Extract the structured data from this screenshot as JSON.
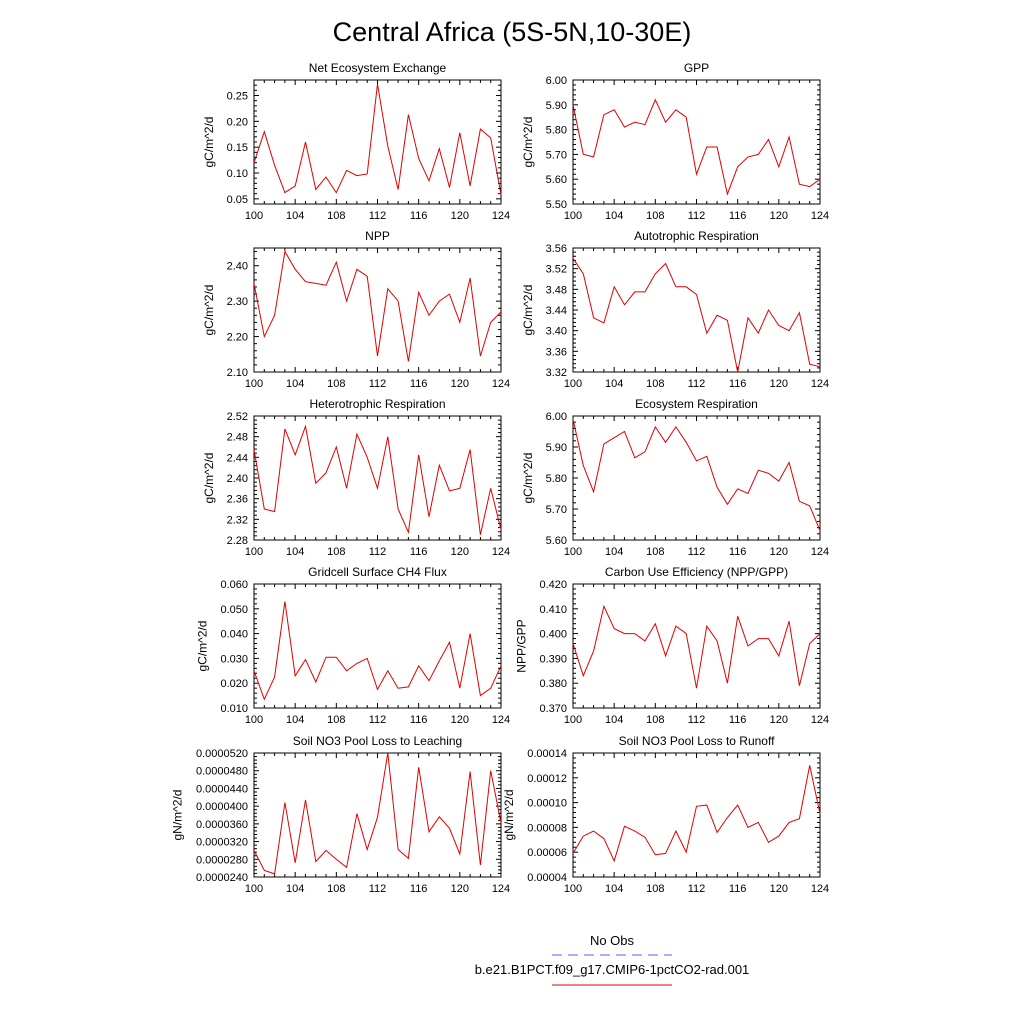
{
  "figure_title": "Central Africa (5S-5N,10-30E)",
  "legend": {
    "obs_label": "No Obs",
    "obs_color": "#5a5aff",
    "run_label": "b.e21.B1PCT.f09_g17.CMIP6-1pctCO2-rad.001",
    "run_color": "#e00000"
  },
  "chart_data": [
    {
      "type": "line",
      "title": "Net Ecosystem Exchange",
      "ylabel": "gC/m^2/d",
      "xlabel": "",
      "xlim": [
        100,
        124
      ],
      "ylim": [
        0.04,
        0.28
      ],
      "xticks": [
        "100",
        "104",
        "108",
        "112",
        "116",
        "120",
        "124"
      ],
      "yticks": [
        "0.05",
        "0.10",
        "0.15",
        "0.20",
        "0.25"
      ],
      "x": [
        100,
        101,
        102,
        103,
        104,
        105,
        106,
        107,
        108,
        109,
        110,
        111,
        112,
        113,
        114,
        115,
        116,
        117,
        118,
        119,
        120,
        121,
        122,
        123,
        124
      ],
      "values": [
        0.12,
        0.18,
        0.115,
        0.062,
        0.075,
        0.16,
        0.068,
        0.092,
        0.062,
        0.105,
        0.095,
        0.098,
        0.272,
        0.152,
        0.068,
        0.213,
        0.128,
        0.085,
        0.147,
        0.072,
        0.178,
        0.075,
        0.185,
        0.168,
        0.058
      ]
    },
    {
      "type": "line",
      "title": "GPP",
      "ylabel": "gC/m^2/d",
      "xlabel": "",
      "xlim": [
        100,
        124
      ],
      "ylim": [
        5.5,
        6.0
      ],
      "xticks": [
        "100",
        "104",
        "108",
        "112",
        "116",
        "120",
        "124"
      ],
      "yticks": [
        "5.50",
        "5.60",
        "5.70",
        "5.80",
        "5.90",
        "6.00"
      ],
      "x": [
        100,
        101,
        102,
        103,
        104,
        105,
        106,
        107,
        108,
        109,
        110,
        111,
        112,
        113,
        114,
        115,
        116,
        117,
        118,
        119,
        120,
        121,
        122,
        123,
        124
      ],
      "values": [
        5.9,
        5.7,
        5.69,
        5.86,
        5.88,
        5.81,
        5.83,
        5.82,
        5.92,
        5.83,
        5.88,
        5.85,
        5.62,
        5.73,
        5.73,
        5.54,
        5.65,
        5.69,
        5.7,
        5.76,
        5.65,
        5.77,
        5.58,
        5.57,
        5.6
      ]
    },
    {
      "type": "line",
      "title": "NPP",
      "ylabel": "gC/m^2/d",
      "xlabel": "",
      "xlim": [
        100,
        124
      ],
      "ylim": [
        2.1,
        2.45
      ],
      "xticks": [
        "100",
        "104",
        "108",
        "112",
        "116",
        "120",
        "124"
      ],
      "yticks": [
        "2.10",
        "2.20",
        "2.30",
        "2.40"
      ],
      "x": [
        100,
        101,
        102,
        103,
        104,
        105,
        106,
        107,
        108,
        109,
        110,
        111,
        112,
        113,
        114,
        115,
        116,
        117,
        118,
        119,
        120,
        121,
        122,
        123,
        124
      ],
      "values": [
        2.35,
        2.2,
        2.26,
        2.44,
        2.39,
        2.355,
        2.35,
        2.345,
        2.41,
        2.3,
        2.39,
        2.37,
        2.145,
        2.335,
        2.3,
        2.13,
        2.325,
        2.26,
        2.3,
        2.32,
        2.24,
        2.365,
        2.145,
        2.24,
        2.27
      ]
    },
    {
      "type": "line",
      "title": "Autotrophic Respiration",
      "ylabel": "gC/m^2/d",
      "xlabel": "",
      "xlim": [
        100,
        124
      ],
      "ylim": [
        3.32,
        3.56
      ],
      "xticks": [
        "100",
        "104",
        "108",
        "112",
        "116",
        "120",
        "124"
      ],
      "yticks": [
        "3.32",
        "3.36",
        "3.40",
        "3.44",
        "3.48",
        "3.52",
        "3.56"
      ],
      "x": [
        100,
        101,
        102,
        103,
        104,
        105,
        106,
        107,
        108,
        109,
        110,
        111,
        112,
        113,
        114,
        115,
        116,
        117,
        118,
        119,
        120,
        121,
        122,
        123,
        124
      ],
      "values": [
        3.54,
        3.51,
        3.425,
        3.415,
        3.485,
        3.45,
        3.475,
        3.475,
        3.51,
        3.53,
        3.485,
        3.485,
        3.47,
        3.395,
        3.43,
        3.42,
        3.32,
        3.425,
        3.395,
        3.44,
        3.41,
        3.4,
        3.435,
        3.335,
        3.33
      ]
    },
    {
      "type": "line",
      "title": "Heterotrophic Respiration",
      "ylabel": "gC/m^2/d",
      "xlabel": "",
      "xlim": [
        100,
        124
      ],
      "ylim": [
        2.28,
        2.52
      ],
      "xticks": [
        "100",
        "104",
        "108",
        "112",
        "116",
        "120",
        "124"
      ],
      "yticks": [
        "2.28",
        "2.32",
        "2.36",
        "2.40",
        "2.44",
        "2.48",
        "2.52"
      ],
      "x": [
        100,
        101,
        102,
        103,
        104,
        105,
        106,
        107,
        108,
        109,
        110,
        111,
        112,
        113,
        114,
        115,
        116,
        117,
        118,
        119,
        120,
        121,
        122,
        123,
        124
      ],
      "values": [
        2.455,
        2.34,
        2.335,
        2.495,
        2.445,
        2.5,
        2.39,
        2.41,
        2.46,
        2.38,
        2.485,
        2.44,
        2.38,
        2.48,
        2.34,
        2.295,
        2.445,
        2.325,
        2.425,
        2.375,
        2.38,
        2.455,
        2.29,
        2.38,
        2.3
      ]
    },
    {
      "type": "line",
      "title": "Ecosystem Respiration",
      "ylabel": "gC/m^2/d",
      "xlabel": "",
      "xlim": [
        100,
        124
      ],
      "ylim": [
        5.6,
        6.0
      ],
      "xticks": [
        "100",
        "104",
        "108",
        "112",
        "116",
        "120",
        "124"
      ],
      "yticks": [
        "5.60",
        "5.70",
        "5.80",
        "5.90",
        "6.00"
      ],
      "x": [
        100,
        101,
        102,
        103,
        104,
        105,
        106,
        107,
        108,
        109,
        110,
        111,
        112,
        113,
        114,
        115,
        116,
        117,
        118,
        119,
        120,
        121,
        122,
        123,
        124
      ],
      "values": [
        5.99,
        5.84,
        5.755,
        5.91,
        5.93,
        5.95,
        5.865,
        5.885,
        5.965,
        5.915,
        5.965,
        5.915,
        5.855,
        5.87,
        5.77,
        5.715,
        5.765,
        5.75,
        5.825,
        5.815,
        5.79,
        5.85,
        5.725,
        5.71,
        5.63
      ]
    },
    {
      "type": "line",
      "title": "Gridcell Surface CH4 Flux",
      "ylabel": "gC/m^2/d",
      "xlabel": "",
      "xlim": [
        100,
        124
      ],
      "ylim": [
        0.01,
        0.06
      ],
      "xticks": [
        "100",
        "104",
        "108",
        "112",
        "116",
        "120",
        "124"
      ],
      "yticks": [
        "0.010",
        "0.020",
        "0.030",
        "0.040",
        "0.050",
        "0.060"
      ],
      "x": [
        100,
        101,
        102,
        103,
        104,
        105,
        106,
        107,
        108,
        109,
        110,
        111,
        112,
        113,
        114,
        115,
        116,
        117,
        118,
        119,
        120,
        121,
        122,
        123,
        124
      ],
      "values": [
        0.025,
        0.0135,
        0.0225,
        0.053,
        0.023,
        0.0295,
        0.0205,
        0.0305,
        0.0305,
        0.025,
        0.028,
        0.03,
        0.0175,
        0.025,
        0.018,
        0.0185,
        0.027,
        0.021,
        0.029,
        0.0365,
        0.018,
        0.04,
        0.015,
        0.018,
        0.027
      ]
    },
    {
      "type": "line",
      "title": "Carbon Use Efficiency (NPP/GPP)",
      "ylabel": "NPP/GPP",
      "xlabel": "",
      "xlim": [
        100,
        124
      ],
      "ylim": [
        0.37,
        0.42
      ],
      "xticks": [
        "100",
        "104",
        "108",
        "112",
        "116",
        "120",
        "124"
      ],
      "yticks": [
        "0.370",
        "0.380",
        "0.390",
        "0.400",
        "0.410",
        "0.420"
      ],
      "x": [
        100,
        101,
        102,
        103,
        104,
        105,
        106,
        107,
        108,
        109,
        110,
        111,
        112,
        113,
        114,
        115,
        116,
        117,
        118,
        119,
        120,
        121,
        122,
        123,
        124
      ],
      "values": [
        0.396,
        0.383,
        0.393,
        0.411,
        0.402,
        0.4,
        0.4,
        0.397,
        0.404,
        0.391,
        0.403,
        0.4,
        0.378,
        0.403,
        0.397,
        0.38,
        0.407,
        0.395,
        0.398,
        0.398,
        0.391,
        0.405,
        0.379,
        0.396,
        0.4
      ]
    },
    {
      "type": "line",
      "title": "Soil NO3 Pool Loss to Leaching",
      "ylabel": "gN/m^2/d",
      "xlabel": "",
      "xlim": [
        100,
        124
      ],
      "ylim": [
        2.4e-05,
        5.2e-05
      ],
      "xticks": [
        "100",
        "104",
        "108",
        "112",
        "116",
        "120",
        "124"
      ],
      "yticks": [
        "0.0000240",
        "0.0000280",
        "0.0000320",
        "0.0000360",
        "0.0000400",
        "0.0000440",
        "0.0000480",
        "0.0000520"
      ],
      "x": [
        100,
        101,
        102,
        103,
        104,
        105,
        106,
        107,
        108,
        109,
        110,
        111,
        112,
        113,
        114,
        115,
        116,
        117,
        118,
        119,
        120,
        121,
        122,
        123,
        124
      ],
      "values": [
        3e-05,
        2.55e-05,
        2.47e-05,
        4.08e-05,
        2.72e-05,
        4.14e-05,
        2.75e-05,
        3e-05,
        2.8e-05,
        2.62e-05,
        3.83e-05,
        3.02e-05,
        3.75e-05,
        5.2e-05,
        3.02e-05,
        2.82e-05,
        4.88e-05,
        3.42e-05,
        3.76e-05,
        3.5e-05,
        2.92e-05,
        4.78e-05,
        2.67e-05,
        4.8e-05,
        3.62e-05
      ]
    },
    {
      "type": "line",
      "title": "Soil NO3 Pool Loss to Runoff",
      "ylabel": "gN/m^2/d",
      "xlabel": "",
      "xlim": [
        100,
        124
      ],
      "ylim": [
        4e-05,
        0.00014
      ],
      "xticks": [
        "100",
        "104",
        "108",
        "112",
        "116",
        "120",
        "124"
      ],
      "yticks": [
        "0.00004",
        "0.00006",
        "0.00008",
        "0.00010",
        "0.00012",
        "0.00014"
      ],
      "x": [
        100,
        101,
        102,
        103,
        104,
        105,
        106,
        107,
        108,
        109,
        110,
        111,
        112,
        113,
        114,
        115,
        116,
        117,
        118,
        119,
        120,
        121,
        122,
        123,
        124
      ],
      "values": [
        5.9e-05,
        7.3e-05,
        7.7e-05,
        7.1e-05,
        5.3e-05,
        8.1e-05,
        7.7e-05,
        7.2e-05,
        5.8e-05,
        5.9e-05,
        7.7e-05,
        6e-05,
        9.7e-05,
        9.8e-05,
        7.6e-05,
        8.8e-05,
        9.8e-05,
        8e-05,
        8.4e-05,
        6.8e-05,
        7.3e-05,
        8.4e-05,
        8.7e-05,
        0.00013,
        9.1e-05
      ]
    }
  ]
}
